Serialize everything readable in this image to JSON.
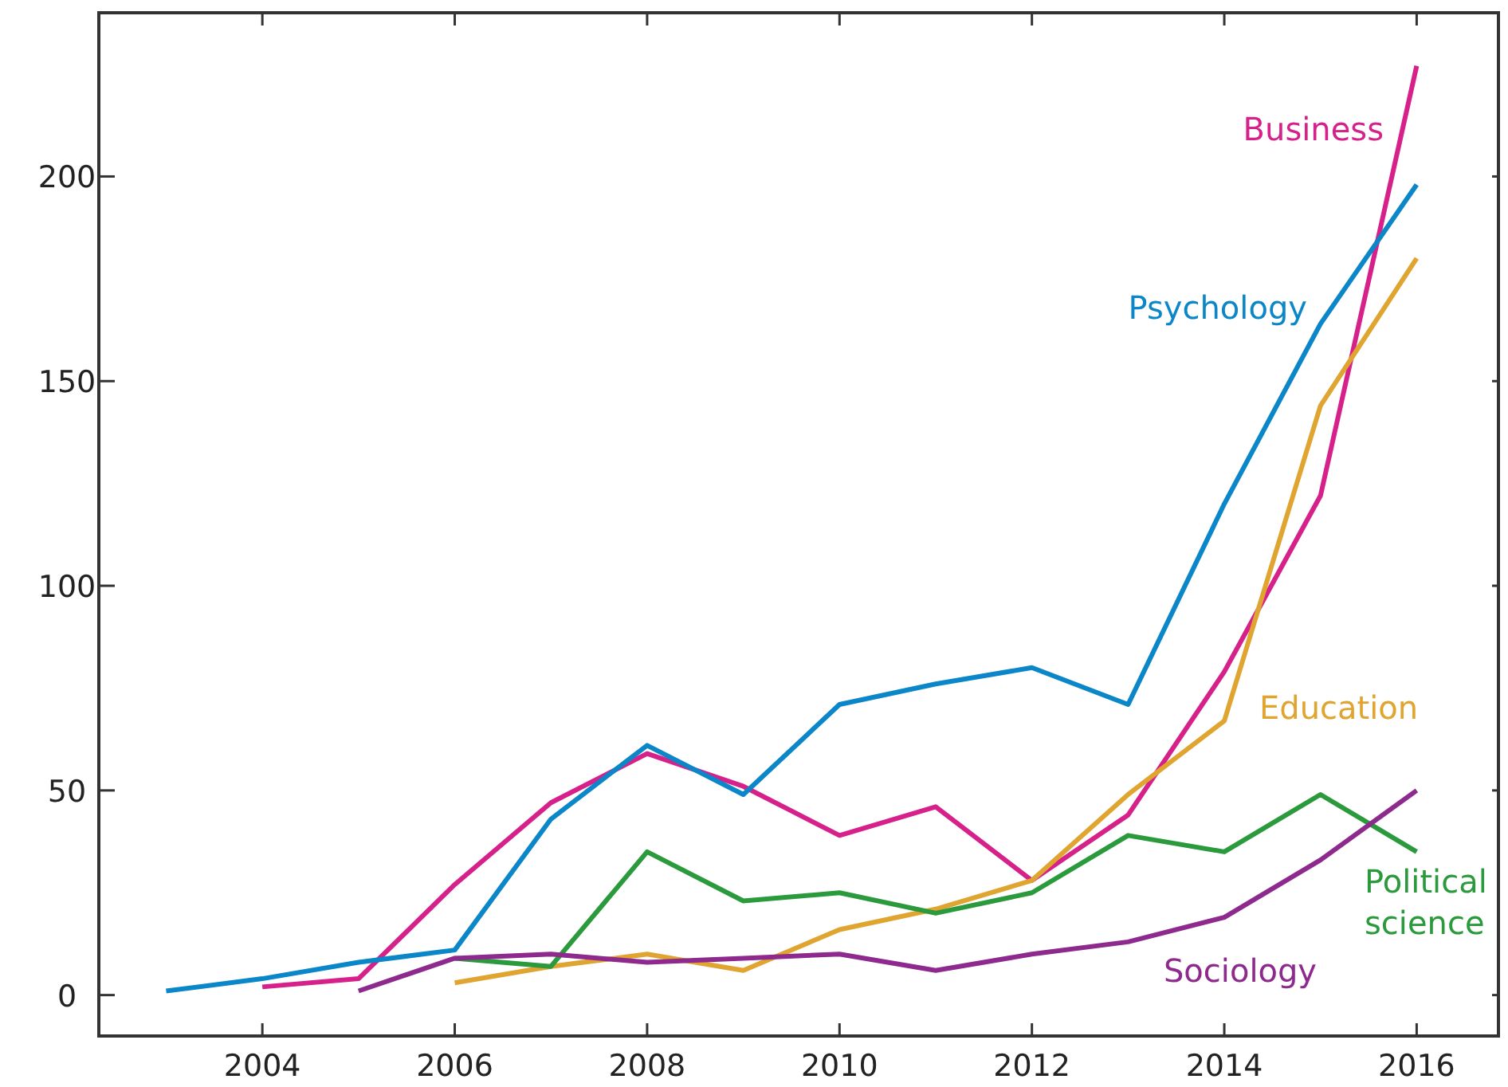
{
  "chart_data": {
    "type": "line",
    "xlim": [
      2002.3,
      2016.85
    ],
    "ylim": [
      -10,
      240
    ],
    "xticks": [
      2004,
      2006,
      2008,
      2010,
      2012,
      2014,
      2016
    ],
    "yticks": [
      0,
      50,
      100,
      150,
      200
    ],
    "grid": false,
    "marker": "none",
    "line_style": "solid",
    "series": [
      {
        "name": "Business",
        "color": "#d6218a",
        "x": [
          2004,
          2005,
          2006,
          2007,
          2008,
          2009,
          2010,
          2011,
          2012,
          2013,
          2014,
          2015,
          2016
        ],
        "values": [
          2,
          4,
          27,
          47,
          59,
          51,
          39,
          46,
          28,
          44,
          79,
          122,
          227
        ]
      },
      {
        "name": "Psychology",
        "color": "#0a86c9",
        "x": [
          2003,
          2004,
          2005,
          2006,
          2007,
          2008,
          2009,
          2010,
          2011,
          2012,
          2013,
          2014,
          2015,
          2016
        ],
        "values": [
          1,
          4,
          8,
          11,
          43,
          61,
          49,
          71,
          76,
          80,
          71,
          120,
          164,
          198
        ]
      },
      {
        "name": "Education",
        "color": "#e0a530",
        "x": [
          2006,
          2007,
          2008,
          2009,
          2010,
          2011,
          2012,
          2013,
          2014,
          2015,
          2016
        ],
        "values": [
          3,
          7,
          10,
          6,
          16,
          21,
          28,
          49,
          67,
          144,
          180
        ]
      },
      {
        "name": "Political science",
        "color": "#2a9a3c",
        "x": [
          2006,
          2007,
          2008,
          2009,
          2010,
          2011,
          2012,
          2013,
          2014,
          2015,
          2016
        ],
        "values": [
          9,
          7,
          35,
          23,
          25,
          20,
          25,
          39,
          35,
          49,
          35
        ]
      },
      {
        "name": "Sociology",
        "color": "#8e2a8e",
        "x": [
          2005,
          2006,
          2007,
          2008,
          2009,
          2010,
          2011,
          2012,
          2013,
          2014,
          2015,
          2016
        ],
        "values": [
          1,
          9,
          10,
          8,
          9,
          10,
          6,
          10,
          13,
          19,
          33,
          50
        ]
      }
    ]
  }
}
